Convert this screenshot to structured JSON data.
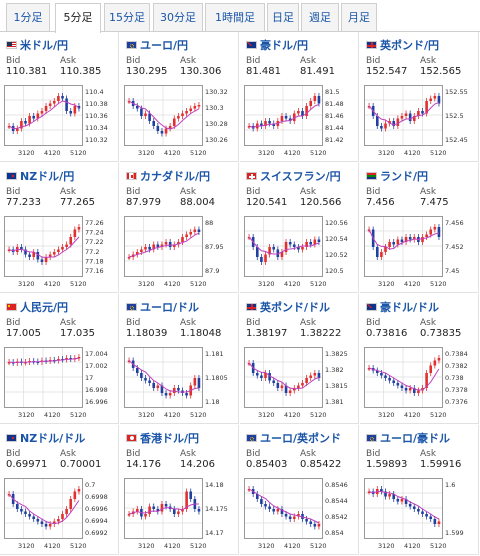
{
  "tabs": [
    "1分足",
    "5分足",
    "15分足",
    "30分足",
    "1時間足",
    "日足",
    "週足",
    "月足"
  ],
  "active_tab": 1,
  "labels": {
    "bid": "Bid",
    "ask": "Ask"
  },
  "colors": {
    "up": "#e03030",
    "down": "#2040a0",
    "ma": "#c040c0",
    "grid": "#dddddd",
    "link": "#1a55a8"
  },
  "pairs": [
    {
      "name": "米ドル/円",
      "flag": "us",
      "bid": "110.381",
      "ask": "110.385",
      "ticks": [
        "110.4",
        "110.38",
        "110.36",
        "110.34",
        "110.32"
      ],
      "xlabels": [
        "3120",
        "4120",
        "5120"
      ],
      "shape": [
        0.3,
        0.2,
        0.25,
        0.4,
        0.35,
        0.5,
        0.45,
        0.55,
        0.6,
        0.7,
        0.75,
        0.8,
        0.9,
        0.85,
        0.6,
        0.55,
        0.7,
        0.65
      ]
    },
    {
      "name": "ユーロ/円",
      "flag": "eu",
      "bid": "130.295",
      "ask": "130.306",
      "ticks": [
        "130.32",
        "130.3",
        "130.28",
        "130.26"
      ],
      "xlabels": [
        "3120",
        "4120",
        "5120"
      ],
      "shape": [
        0.8,
        0.7,
        0.65,
        0.5,
        0.55,
        0.4,
        0.3,
        0.2,
        0.15,
        0.25,
        0.3,
        0.45,
        0.5,
        0.55,
        0.6,
        0.65,
        0.7,
        0.72
      ]
    },
    {
      "name": "豪ドル/円",
      "flag": "au",
      "bid": "81.481",
      "ask": "81.491",
      "ticks": [
        "81.5",
        "81.48",
        "81.46",
        "81.44",
        "81.42"
      ],
      "xlabels": [
        "3120",
        "4120",
        "5120"
      ],
      "shape": [
        0.3,
        0.25,
        0.35,
        0.3,
        0.4,
        0.35,
        0.3,
        0.4,
        0.5,
        0.45,
        0.4,
        0.55,
        0.6,
        0.5,
        0.7,
        0.8,
        0.9,
        0.75
      ]
    },
    {
      "name": "英ポンド/円",
      "flag": "gb",
      "bid": "152.547",
      "ask": "152.565",
      "ticks": [
        "152.55",
        "152.5",
        "152.45"
      ],
      "xlabels": [
        "3120",
        "4120",
        "5120"
      ],
      "shape": [
        0.7,
        0.5,
        0.3,
        0.25,
        0.35,
        0.4,
        0.3,
        0.45,
        0.5,
        0.55,
        0.4,
        0.5,
        0.6,
        0.55,
        0.8,
        0.85,
        0.9,
        0.75
      ]
    },
    {
      "name": "NZドル/円",
      "flag": "nz",
      "bid": "77.233",
      "ask": "77.265",
      "ticks": [
        "77.26",
        "77.24",
        "77.22",
        "77.2",
        "77.18",
        "77.16"
      ],
      "xlabels": [
        "3120",
        "4120",
        "5120"
      ],
      "shape": [
        0.45,
        0.4,
        0.5,
        0.45,
        0.35,
        0.3,
        0.4,
        0.25,
        0.2,
        0.3,
        0.35,
        0.4,
        0.45,
        0.5,
        0.55,
        0.7,
        0.85,
        0.9
      ]
    },
    {
      "name": "カナダドル/円",
      "flag": "ca",
      "bid": "87.979",
      "ask": "88.004",
      "ticks": [
        "88",
        "87.95",
        "87.9"
      ],
      "xlabels": [
        "3120",
        "4120",
        "5120"
      ],
      "shape": [
        0.3,
        0.35,
        0.4,
        0.45,
        0.5,
        0.45,
        0.55,
        0.5,
        0.55,
        0.6,
        0.5,
        0.55,
        0.6,
        0.7,
        0.75,
        0.8,
        0.85,
        0.8
      ]
    },
    {
      "name": "スイスフラン/円",
      "flag": "ch",
      "bid": "120.541",
      "ask": "120.566",
      "ticks": [
        "120.56",
        "120.54",
        "120.52",
        "120.5"
      ],
      "xlabels": [
        "3120",
        "4120",
        "5120"
      ],
      "shape": [
        0.7,
        0.5,
        0.3,
        0.2,
        0.35,
        0.5,
        0.45,
        0.3,
        0.4,
        0.6,
        0.55,
        0.5,
        0.45,
        0.5,
        0.6,
        0.55,
        0.65,
        0.6
      ]
    },
    {
      "name": "ランド/円",
      "flag": "za",
      "bid": "7.456",
      "ask": "7.475",
      "ticks": [
        "7.456",
        "7.452",
        "7.45"
      ],
      "xlabels": [
        "3120",
        "4120",
        "5120"
      ],
      "shape": [
        0.85,
        0.5,
        0.3,
        0.4,
        0.5,
        0.6,
        0.55,
        0.65,
        0.6,
        0.7,
        0.65,
        0.7,
        0.6,
        0.7,
        0.75,
        0.85,
        0.9,
        0.7
      ]
    },
    {
      "name": "人民元/円",
      "flag": "cn",
      "bid": "17.005",
      "ask": "17.035",
      "ticks": [
        "17.004",
        "17.002",
        "17",
        "16.998",
        "16.996"
      ],
      "xlabels": [
        "3120",
        "4120",
        "5120"
      ],
      "shape": [
        0.82,
        0.8,
        0.83,
        0.81,
        0.82,
        0.84,
        0.83,
        0.82,
        0.85,
        0.84,
        0.86,
        0.85,
        0.88,
        0.87,
        0.9,
        0.88,
        0.9,
        0.92
      ]
    },
    {
      "name": "ユーロ/ドル",
      "flag": "eu",
      "bid": "1.18039",
      "ask": "1.18048",
      "ticks": [
        "1.181",
        "1.1805",
        "1.18"
      ],
      "xlabels": [
        "3120",
        "4120",
        "5120"
      ],
      "shape": [
        0.85,
        0.7,
        0.6,
        0.5,
        0.45,
        0.4,
        0.3,
        0.35,
        0.2,
        0.15,
        0.2,
        0.3,
        0.25,
        0.2,
        0.15,
        0.35,
        0.5,
        0.3
      ]
    },
    {
      "name": "英ポンド/ドル",
      "flag": "gb",
      "bid": "1.38197",
      "ask": "1.38222",
      "ticks": [
        "1.3825",
        "1.382",
        "1.3815",
        "1.381"
      ],
      "xlabels": [
        "3120",
        "4120",
        "5120"
      ],
      "shape": [
        0.8,
        0.6,
        0.55,
        0.5,
        0.6,
        0.45,
        0.4,
        0.3,
        0.35,
        0.2,
        0.25,
        0.3,
        0.35,
        0.4,
        0.5,
        0.55,
        0.6,
        0.5
      ]
    },
    {
      "name": "豪ドル/ドル",
      "flag": "au",
      "bid": "0.73816",
      "ask": "0.73835",
      "ticks": [
        "0.7384",
        "0.7382",
        "0.738",
        "0.7378",
        "0.7376"
      ],
      "xlabels": [
        "3120",
        "4120",
        "5120"
      ],
      "shape": [
        0.7,
        0.65,
        0.6,
        0.55,
        0.5,
        0.45,
        0.4,
        0.35,
        0.3,
        0.25,
        0.3,
        0.2,
        0.25,
        0.3,
        0.6,
        0.75,
        0.85,
        0.9
      ]
    },
    {
      "name": "NZドル/ドル",
      "flag": "nz",
      "bid": "0.69971",
      "ask": "0.70001",
      "ticks": [
        "0.7",
        "0.6998",
        "0.6996",
        "0.6994",
        "0.6992"
      ],
      "xlabels": [
        "3120",
        "4120",
        "5120"
      ],
      "shape": [
        0.8,
        0.6,
        0.5,
        0.45,
        0.4,
        0.35,
        0.3,
        0.25,
        0.2,
        0.15,
        0.2,
        0.25,
        0.3,
        0.4,
        0.5,
        0.7,
        0.85,
        0.9
      ]
    },
    {
      "name": "香港ドル/円",
      "flag": "hk",
      "bid": "14.176",
      "ask": "14.206",
      "ticks": [
        "14.18",
        "14.175",
        "14.17"
      ],
      "xlabels": [
        "3120",
        "4120",
        "5120"
      ],
      "shape": [
        0.4,
        0.45,
        0.5,
        0.35,
        0.4,
        0.55,
        0.5,
        0.45,
        0.6,
        0.55,
        0.5,
        0.4,
        0.45,
        0.5,
        0.85,
        0.7,
        0.5,
        0.45
      ]
    },
    {
      "name": "ユーロ/英ポンド",
      "flag": "eu",
      "bid": "0.85403",
      "ask": "0.85422",
      "ticks": [
        "0.8546",
        "0.8544",
        "0.8542",
        "0.854"
      ],
      "xlabels": [
        "3120",
        "4120",
        "5120"
      ],
      "shape": [
        0.9,
        0.8,
        0.7,
        0.6,
        0.55,
        0.5,
        0.45,
        0.5,
        0.4,
        0.35,
        0.3,
        0.35,
        0.4,
        0.3,
        0.25,
        0.2,
        0.15,
        0.2
      ]
    },
    {
      "name": "ユーロ/豪ドル",
      "flag": "eu",
      "bid": "1.59893",
      "ask": "1.59916",
      "ticks": [
        "1.6",
        "1.599"
      ],
      "xlabels": [
        "3120",
        "4120",
        "5120"
      ],
      "shape": [
        0.85,
        0.8,
        0.9,
        0.85,
        0.75,
        0.8,
        0.7,
        0.65,
        0.7,
        0.6,
        0.55,
        0.5,
        0.45,
        0.4,
        0.35,
        0.3,
        0.2,
        0.25
      ]
    }
  ]
}
